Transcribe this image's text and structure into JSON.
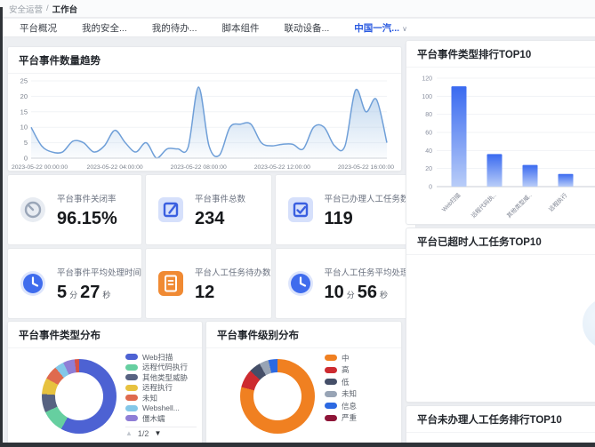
{
  "breadcrumb": {
    "parent": "安全运营",
    "separator": "/",
    "current": "工作台"
  },
  "tabs": [
    {
      "label": "平台概况",
      "active": false
    },
    {
      "label": "我的安全...",
      "active": false
    },
    {
      "label": "我的待办...",
      "active": false
    },
    {
      "label": "脚本组件",
      "active": false
    },
    {
      "label": "联动设备...",
      "active": false
    },
    {
      "label": "中国一汽...",
      "active": true,
      "caret": "∨"
    }
  ],
  "panels": {
    "trend_title": "平台事件数量趋势",
    "type_rank_title": "平台事件类型排行TOP10",
    "overdue_title": "平台已超时人工任务TOP10",
    "todo_title": "平台未办理人工任务排行TOP10",
    "type_dist_title": "平台事件类型分布",
    "level_dist_title": "平台事件级别分布"
  },
  "stats": [
    {
      "icon": "gauge-icon",
      "label": "平台事件关闭率",
      "value": "96.15%"
    },
    {
      "icon": "edit-doc-icon",
      "label": "平台事件总数",
      "value": "234"
    },
    {
      "icon": "check-doc-icon",
      "label": "平台已办理人工任务数",
      "value": "119"
    },
    {
      "icon": "clock-icon",
      "label": "平台事件平均处理时间",
      "value_parts": [
        "5",
        "分",
        "27",
        "秒"
      ]
    },
    {
      "icon": "orange-doc-icon",
      "label": "平台人工任务待办数",
      "value": "12"
    },
    {
      "icon": "clock-icon",
      "label": "平台人工任务平均处理...",
      "value_parts": [
        "10",
        "分",
        "56",
        "秒"
      ]
    }
  ],
  "pager": {
    "up": "▲",
    "page": "1/2",
    "down": "▼"
  },
  "chart_data": [
    {
      "id": "trend",
      "type": "area",
      "title": "平台事件数量趋势",
      "x_start_hour": 0,
      "x_step_hours": 0.5,
      "values": [
        10,
        4,
        2,
        2,
        5.5,
        5,
        2,
        4,
        9,
        5,
        2,
        5,
        0,
        3,
        3,
        3.5,
        23,
        4,
        1,
        10,
        11,
        11,
        5,
        4,
        4.5,
        4.5,
        3,
        10,
        10,
        4,
        4,
        22,
        15,
        19,
        5
      ],
      "x_tick_hours": [
        0,
        4,
        8,
        12,
        16
      ],
      "x_tick_labels": [
        "2023-05-22 00:00:00",
        "2023-05-22 04:00:00",
        "2023-05-22 08:00:00",
        "2023-05-22 12:00:00",
        "2023-05-22 16:00:00"
      ],
      "ylim": [
        0,
        25
      ],
      "yticks": [
        0,
        5,
        10,
        15,
        20,
        25
      ],
      "grid": true,
      "line_color": "#6f9fd8",
      "fill_color": "#a9c8e8"
    },
    {
      "id": "type_rank",
      "type": "bar",
      "title": "平台事件类型排行TOP10",
      "categories": [
        "Web扫描",
        "远程代码执..",
        "其他类型威..",
        "远程执行"
      ],
      "values": [
        111,
        36,
        24,
        14
      ],
      "ylim": [
        0,
        120
      ],
      "yticks": [
        0,
        20,
        40,
        60,
        80,
        100,
        120
      ],
      "grid": true,
      "bar_color_top": "#3a6af0",
      "bar_color_bottom": "#b9cdf8"
    },
    {
      "id": "type_dist",
      "type": "pie",
      "title": "平台事件类型分布",
      "legend_page": "1/2",
      "segments": [
        {
          "label": "Web扫描",
          "pct": 58,
          "color": "#4d62d3"
        },
        {
          "label": "远程代码执行",
          "pct": 10,
          "color": "#66cfa0"
        },
        {
          "label": "其他类型威胁",
          "pct": 8,
          "color": "#576281"
        },
        {
          "label": "远程执行",
          "pct": 7,
          "color": "#e7c23f"
        },
        {
          "label": "未知",
          "pct": 6,
          "color": "#df6a4e"
        },
        {
          "label": "Webshell...",
          "pct": 4,
          "color": "#83c7e8"
        },
        {
          "label": "僵木蠕",
          "pct": 5,
          "color": "#8f7ed6"
        },
        {
          "label": "",
          "pct": 2,
          "color": "#d65244"
        }
      ]
    },
    {
      "id": "level_dist",
      "type": "pie",
      "title": "平台事件级别分布",
      "segments": [
        {
          "label": "中",
          "pct": 79,
          "color": "#f08021"
        },
        {
          "label": "高",
          "pct": 8,
          "color": "#cd2b30"
        },
        {
          "label": "低",
          "pct": 5,
          "color": "#454f68"
        },
        {
          "label": "未知",
          "pct": 4,
          "color": "#98a4b5"
        },
        {
          "label": "信息",
          "pct": 4,
          "color": "#2c69e2"
        },
        {
          "label": "严重",
          "pct": 0,
          "color": "#8e1538"
        }
      ]
    }
  ]
}
